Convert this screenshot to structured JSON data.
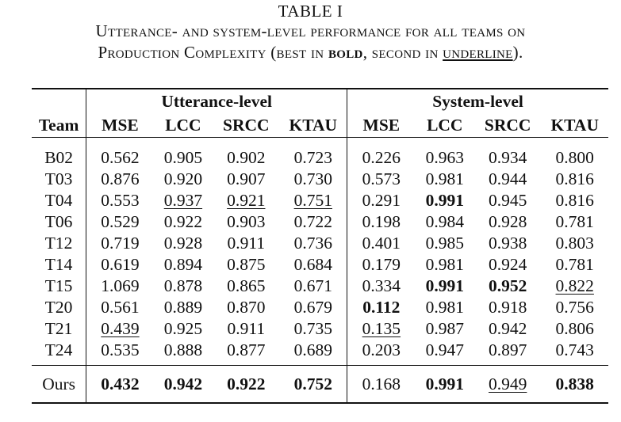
{
  "caption": {
    "label": "TABLE I",
    "line1": "Utterance- and system-level performance for all teams on",
    "line2_prefix": "Production Complexity (best in ",
    "line2_bold": "bold",
    "line2_middle": ", second in ",
    "line2_underline": "underline",
    "line2_suffix": ")."
  },
  "table": {
    "team_header": "Team",
    "groups": [
      "Utterance-level",
      "System-level"
    ],
    "columns": [
      "MSE",
      "LCC",
      "SRCC",
      "KTAU",
      "MSE",
      "LCC",
      "SRCC",
      "KTAU"
    ],
    "rows": [
      {
        "team": "B02",
        "values": [
          "0.562",
          "0.905",
          "0.902",
          "0.723",
          "0.226",
          "0.963",
          "0.934",
          "0.800"
        ]
      },
      {
        "team": "T03",
        "values": [
          "0.876",
          "0.920",
          "0.907",
          "0.730",
          "0.573",
          "0.981",
          "0.944",
          "0.816"
        ]
      },
      {
        "team": "T04",
        "values": [
          "0.553",
          "0.937",
          "0.921",
          "0.751",
          "0.291",
          "0.991",
          "0.945",
          "0.816"
        ]
      },
      {
        "team": "T06",
        "values": [
          "0.529",
          "0.922",
          "0.903",
          "0.722",
          "0.198",
          "0.984",
          "0.928",
          "0.781"
        ]
      },
      {
        "team": "T12",
        "values": [
          "0.719",
          "0.928",
          "0.911",
          "0.736",
          "0.401",
          "0.985",
          "0.938",
          "0.803"
        ]
      },
      {
        "team": "T14",
        "values": [
          "0.619",
          "0.894",
          "0.875",
          "0.684",
          "0.179",
          "0.981",
          "0.924",
          "0.781"
        ]
      },
      {
        "team": "T15",
        "values": [
          "1.069",
          "0.878",
          "0.865",
          "0.671",
          "0.334",
          "0.991",
          "0.952",
          "0.822"
        ]
      },
      {
        "team": "T20",
        "values": [
          "0.561",
          "0.889",
          "0.870",
          "0.679",
          "0.112",
          "0.981",
          "0.918",
          "0.756"
        ]
      },
      {
        "team": "T21",
        "values": [
          "0.439",
          "0.925",
          "0.911",
          "0.735",
          "0.135",
          "0.987",
          "0.942",
          "0.806"
        ]
      },
      {
        "team": "T24",
        "values": [
          "0.535",
          "0.888",
          "0.877",
          "0.689",
          "0.203",
          "0.947",
          "0.897",
          "0.743"
        ]
      }
    ],
    "ours": {
      "team": "Ours",
      "values": [
        "0.432",
        "0.942",
        "0.922",
        "0.752",
        "0.168",
        "0.991",
        "0.949",
        "0.838"
      ]
    }
  }
}
